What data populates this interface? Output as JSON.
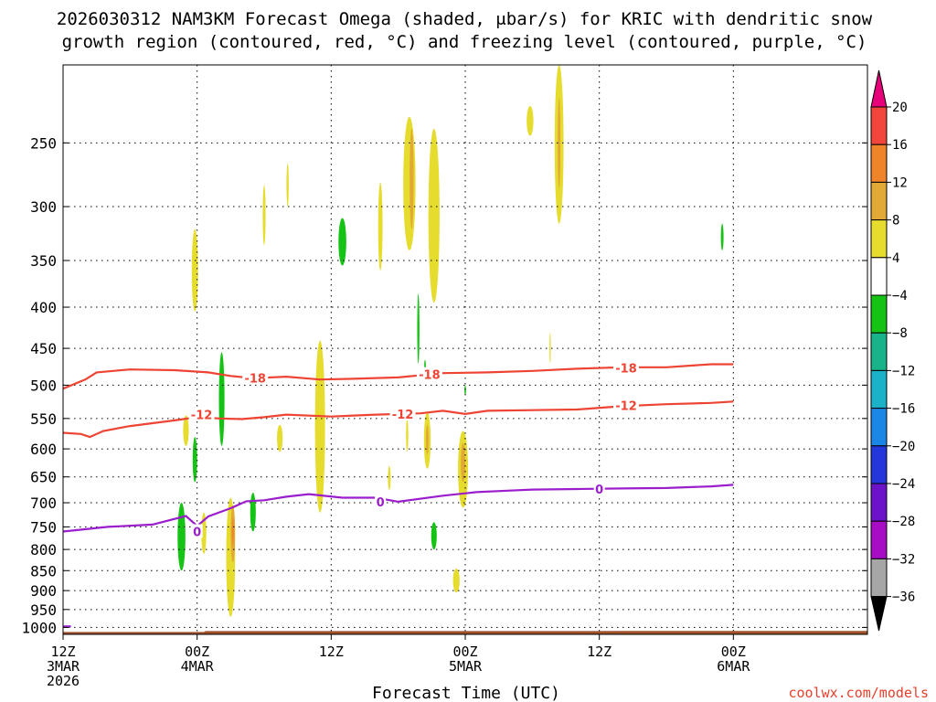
{
  "chart_data": {
    "type": "heatmap",
    "title_line1": "2026030312 NAM3KM Forecast Omega (shaded, μbar/s) for KRIC with dendritic snow",
    "title_line2": "growth region (contoured, red, °C) and freezing level (contoured, purple, °C)",
    "xlabel": "Forecast Time (UTC)",
    "credit": "coolwx.com/models",
    "x_unit": "hours since 12Z 3MAR 2026",
    "xlim": [
      0,
      36
    ],
    "x_ticks": [
      {
        "x": 0,
        "lines": [
          "12Z",
          "3MAR",
          "2026"
        ]
      },
      {
        "x": 6,
        "lines": [
          "00Z",
          "4MAR"
        ]
      },
      {
        "x": 12,
        "lines": [
          "12Z"
        ]
      },
      {
        "x": 18,
        "lines": [
          "00Z",
          "5MAR"
        ]
      },
      {
        "x": 24,
        "lines": [
          "12Z"
        ]
      },
      {
        "x": 30,
        "lines": [
          "00Z",
          "6MAR"
        ]
      }
    ],
    "y_axis": {
      "scale": "log",
      "unit": "hPa",
      "range": [
        1020,
        200
      ],
      "ticks": [
        250,
        300,
        350,
        400,
        450,
        500,
        550,
        600,
        650,
        700,
        750,
        800,
        850,
        900,
        950,
        1000
      ]
    },
    "colorbar": {
      "levels": [
        "20",
        "16",
        "12",
        "8",
        "4",
        "−4",
        "−8",
        "−12",
        "−16",
        "−20",
        "−24",
        "−28",
        "−32",
        "−36"
      ],
      "colors": [
        "#e6007a",
        "#f2453b",
        "#f08428",
        "#e2a934",
        "#e6dc2e",
        "#ffffff",
        "#15c315",
        "#18b388",
        "#1ab2c9",
        "#1a87e6",
        "#2337da",
        "#6c13c9",
        "#a60dc4",
        "#a6a6a6",
        "#000000"
      ]
    },
    "isotherms": [
      {
        "value": -18,
        "label": "-18",
        "color": "#ee4433",
        "points": [
          [
            0,
            505
          ],
          [
            1,
            492
          ],
          [
            1.5,
            482
          ],
          [
            3,
            478
          ],
          [
            5,
            479
          ],
          [
            6.5,
            482
          ],
          [
            7.5,
            487
          ],
          [
            8.5,
            490
          ],
          [
            10,
            488
          ],
          [
            11.5,
            492
          ],
          [
            13,
            491
          ],
          [
            15,
            489
          ],
          [
            17,
            483
          ],
          [
            19,
            482
          ],
          [
            21,
            480
          ],
          [
            23,
            477
          ],
          [
            25,
            475
          ],
          [
            27,
            475
          ],
          [
            29,
            471
          ],
          [
            30,
            471
          ]
        ],
        "labels": [
          [
            8.6,
            490
          ],
          [
            16.4,
            485
          ],
          [
            25.2,
            476
          ]
        ]
      },
      {
        "value": -12,
        "label": "-12",
        "color": "#ee4433",
        "points": [
          [
            0,
            573
          ],
          [
            0.8,
            575
          ],
          [
            1.2,
            580
          ],
          [
            1.8,
            570
          ],
          [
            3,
            562
          ],
          [
            5,
            553
          ],
          [
            6,
            548
          ],
          [
            7,
            550
          ],
          [
            8,
            551
          ],
          [
            9,
            548
          ],
          [
            10,
            544
          ],
          [
            12,
            547
          ],
          [
            14,
            544
          ],
          [
            16,
            542
          ],
          [
            17,
            538
          ],
          [
            18,
            543
          ],
          [
            19,
            538
          ],
          [
            21,
            537
          ],
          [
            23,
            536
          ],
          [
            25,
            531
          ],
          [
            27,
            528
          ],
          [
            29,
            526
          ],
          [
            30,
            524
          ]
        ],
        "labels": [
          [
            6.2,
            544
          ],
          [
            15.2,
            543
          ],
          [
            25.2,
            530
          ]
        ]
      },
      {
        "value": 0,
        "label": "0",
        "color": "#9b1ecc",
        "points": [
          [
            0,
            760
          ],
          [
            2,
            750
          ],
          [
            4,
            745
          ],
          [
            5.5,
            727
          ],
          [
            6,
            748
          ],
          [
            6.5,
            728
          ],
          [
            7.5,
            711
          ],
          [
            8.2,
            697
          ],
          [
            9,
            695
          ],
          [
            10,
            688
          ],
          [
            11,
            683
          ],
          [
            12.5,
            690
          ],
          [
            14,
            690
          ],
          [
            15,
            698
          ],
          [
            17,
            686
          ],
          [
            18.5,
            679
          ],
          [
            20,
            676
          ],
          [
            21,
            674
          ],
          [
            23,
            673
          ],
          [
            25,
            672
          ],
          [
            27,
            671
          ],
          [
            29,
            668
          ],
          [
            30,
            665
          ]
        ],
        "labels": [
          [
            6,
            760
          ],
          [
            14.2,
            698
          ],
          [
            24,
            673
          ]
        ]
      },
      {
        "value": 0,
        "label": "",
        "color": "#9b1ecc",
        "points": [
          [
            -0.1,
            997
          ],
          [
            0.35,
            997
          ]
        ],
        "labels": []
      }
    ],
    "omega_areas": [
      {
        "value": 4,
        "x": 5.9,
        "y0": 320,
        "y1": 405,
        "w": 0.28
      },
      {
        "value": 4,
        "x": 9.0,
        "y0": 282,
        "y1": 335,
        "w": 0.13
      },
      {
        "value": 4,
        "x": 10.05,
        "y0": 265,
        "y1": 300,
        "w": 0.1
      },
      {
        "value": 4,
        "x": 14.2,
        "y0": 280,
        "y1": 360,
        "w": 0.2
      },
      {
        "value": 4,
        "x": 15.5,
        "y0": 232,
        "y1": 340,
        "w": 0.55
      },
      {
        "value": 4,
        "x": 16.6,
        "y0": 240,
        "y1": 395,
        "w": 0.5
      },
      {
        "value": 4,
        "x": 20.9,
        "y0": 225,
        "y1": 245,
        "w": 0.3
      },
      {
        "value": 4,
        "x": 22.2,
        "y0": 200,
        "y1": 315,
        "w": 0.4
      },
      {
        "value": 4,
        "x": 21.8,
        "y0": 430,
        "y1": 470,
        "w": 0.06
      },
      {
        "value": 4,
        "x": 5.5,
        "y0": 545,
        "y1": 595,
        "w": 0.25
      },
      {
        "value": 4,
        "x": 9.7,
        "y0": 560,
        "y1": 605,
        "w": 0.25
      },
      {
        "value": 4,
        "x": 11.5,
        "y0": 440,
        "y1": 720,
        "w": 0.45
      },
      {
        "value": 4,
        "x": 15.4,
        "y0": 550,
        "y1": 605,
        "w": 0.1
      },
      {
        "value": 4,
        "x": 14.6,
        "y0": 630,
        "y1": 675,
        "w": 0.12
      },
      {
        "value": 4,
        "x": 16.3,
        "y0": 540,
        "y1": 635,
        "w": 0.3
      },
      {
        "value": 4,
        "x": 17.9,
        "y0": 570,
        "y1": 710,
        "w": 0.45
      },
      {
        "value": 4,
        "x": 17.6,
        "y0": 845,
        "y1": 905,
        "w": 0.3
      },
      {
        "value": 4,
        "x": 6.3,
        "y0": 720,
        "y1": 810,
        "w": 0.22
      },
      {
        "value": 4,
        "x": 7.5,
        "y0": 690,
        "y1": 970,
        "w": 0.4
      },
      {
        "value": 8,
        "x": 15.6,
        "y0": 240,
        "y1": 320,
        "w": 0.18
      },
      {
        "value": 8,
        "x": 22.2,
        "y0": 220,
        "y1": 285,
        "w": 0.12
      },
      {
        "value": 8,
        "x": 16.3,
        "y0": 560,
        "y1": 610,
        "w": 0.12
      },
      {
        "value": 8,
        "x": 17.9,
        "y0": 590,
        "y1": 660,
        "w": 0.2
      },
      {
        "value": 8,
        "x": 7.6,
        "y0": 705,
        "y1": 830,
        "w": 0.2
      },
      {
        "value": 12,
        "x": 7.6,
        "y0": 730,
        "y1": 790,
        "w": 0.08
      },
      {
        "value": -4,
        "x": 12.5,
        "y0": 310,
        "y1": 355,
        "w": 0.35
      },
      {
        "value": -4,
        "x": 15.9,
        "y0": 385,
        "y1": 470,
        "w": 0.1
      },
      {
        "value": -4,
        "x": 7.1,
        "y0": 455,
        "y1": 595,
        "w": 0.25
      },
      {
        "value": -4,
        "x": 5.9,
        "y0": 580,
        "y1": 660,
        "w": 0.2
      },
      {
        "value": -4,
        "x": 16.2,
        "y0": 465,
        "y1": 480,
        "w": 0.07
      },
      {
        "value": -4,
        "x": 18.0,
        "y0": 500,
        "y1": 515,
        "w": 0.07
      },
      {
        "value": -4,
        "x": 29.5,
        "y0": 315,
        "y1": 340,
        "w": 0.12
      },
      {
        "value": -4,
        "x": 5.3,
        "y0": 700,
        "y1": 850,
        "w": 0.35
      },
      {
        "value": -4,
        "x": 8.5,
        "y0": 680,
        "y1": 760,
        "w": 0.25
      },
      {
        "value": -4,
        "x": 16.6,
        "y0": 740,
        "y1": 800,
        "w": 0.25
      }
    ],
    "terrain": {
      "color": "#a0522d",
      "top_hPa_start": 1013,
      "top_hPa_end": 1010
    }
  }
}
